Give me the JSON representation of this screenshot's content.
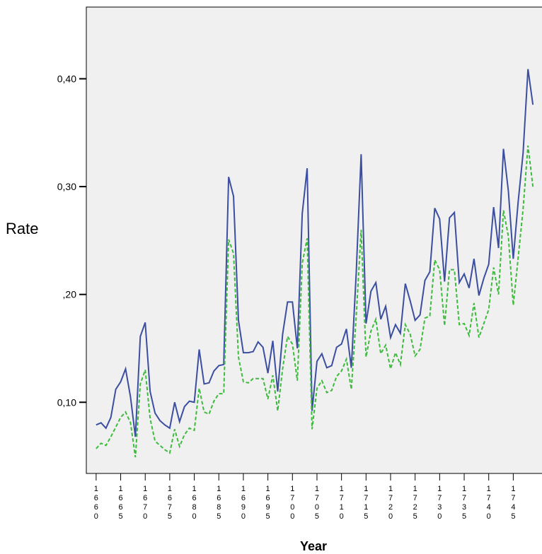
{
  "chart_data": {
    "type": "line",
    "xlabel": "Year",
    "ylabel": "Rate",
    "xlim": [
      1658,
      1751
    ],
    "ylim": [
      0.034,
      0.4665
    ],
    "y_ticks": [
      {
        "value": 0.1,
        "label": "0,10"
      },
      {
        "value": 0.2,
        "label": ",20"
      },
      {
        "value": 0.3,
        "label": "0,30"
      },
      {
        "value": 0.4,
        "label": "0,40"
      }
    ],
    "x_ticks": [
      1660,
      1665,
      1670,
      1675,
      1680,
      1685,
      1690,
      1695,
      1700,
      1705,
      1710,
      1715,
      1720,
      1725,
      1730,
      1735,
      1740,
      1745
    ],
    "x_tick_labels": [
      "1660",
      "1665",
      "1670",
      "1675",
      "1680",
      "1685",
      "1690",
      "1695",
      "1700",
      "1705",
      "1710",
      "1715",
      "1720",
      "1725",
      "1730",
      "1735",
      "1740",
      "1745"
    ],
    "plot_background": "#f0f0f0",
    "series": [
      {
        "style": "solid",
        "color": "#3b4ea0",
        "x": [
          1660,
          1661,
          1662,
          1663,
          1664,
          1665,
          1666,
          1667,
          1668,
          1669,
          1670,
          1671,
          1672,
          1673,
          1674,
          1675,
          1676,
          1677,
          1678,
          1679,
          1680,
          1681,
          1682,
          1683,
          1684,
          1685,
          1686,
          1687,
          1688,
          1689,
          1690,
          1691,
          1692,
          1693,
          1694,
          1695,
          1696,
          1697,
          1698,
          1699,
          1700,
          1701,
          1702,
          1703,
          1704,
          1705,
          1706,
          1707,
          1708,
          1709,
          1710,
          1711,
          1712,
          1713,
          1714,
          1715,
          1716,
          1717,
          1718,
          1719,
          1720,
          1721,
          1722,
          1723,
          1724,
          1725,
          1726,
          1727,
          1728,
          1729,
          1730,
          1731,
          1732,
          1733,
          1734,
          1735,
          1736,
          1737,
          1738,
          1739,
          1740,
          1741,
          1742,
          1743,
          1744,
          1745,
          1746,
          1747,
          1748,
          1749
        ],
        "values": [
          0.079,
          0.081,
          0.076,
          0.086,
          0.112,
          0.119,
          0.131,
          0.105,
          0.068,
          0.161,
          0.174,
          0.11,
          0.09,
          0.083,
          0.079,
          0.076,
          0.1,
          0.082,
          0.096,
          0.101,
          0.1,
          0.149,
          0.117,
          0.118,
          0.129,
          0.134,
          0.135,
          0.309,
          0.291,
          0.176,
          0.146,
          0.146,
          0.147,
          0.156,
          0.151,
          0.127,
          0.157,
          0.11,
          0.163,
          0.193,
          0.193,
          0.15,
          0.275,
          0.317,
          0.092,
          0.138,
          0.145,
          0.132,
          0.134,
          0.151,
          0.154,
          0.168,
          0.132,
          0.22,
          0.33,
          0.173,
          0.203,
          0.211,
          0.177,
          0.189,
          0.16,
          0.172,
          0.164,
          0.21,
          0.194,
          0.176,
          0.181,
          0.213,
          0.221,
          0.28,
          0.27,
          0.212,
          0.271,
          0.276,
          0.211,
          0.219,
          0.206,
          0.233,
          0.199,
          0.215,
          0.228,
          0.281,
          0.243,
          0.335,
          0.296,
          0.233,
          0.286,
          0.331,
          0.409,
          0.376
        ]
      },
      {
        "style": "dashed",
        "color": "#3dbb3d",
        "x": [
          1660,
          1661,
          1662,
          1663,
          1664,
          1665,
          1666,
          1667,
          1668,
          1669,
          1670,
          1671,
          1672,
          1673,
          1674,
          1675,
          1676,
          1677,
          1678,
          1679,
          1680,
          1681,
          1682,
          1683,
          1684,
          1685,
          1686,
          1687,
          1688,
          1689,
          1690,
          1691,
          1692,
          1693,
          1694,
          1695,
          1696,
          1697,
          1698,
          1699,
          1700,
          1701,
          1702,
          1703,
          1704,
          1705,
          1706,
          1707,
          1708,
          1709,
          1710,
          1711,
          1712,
          1713,
          1714,
          1715,
          1716,
          1717,
          1718,
          1719,
          1720,
          1721,
          1722,
          1723,
          1724,
          1725,
          1726,
          1727,
          1728,
          1729,
          1730,
          1731,
          1732,
          1733,
          1734,
          1735,
          1736,
          1737,
          1738,
          1739,
          1740,
          1741,
          1742,
          1743,
          1744,
          1745,
          1746,
          1747,
          1748,
          1749
        ],
        "values": [
          0.057,
          0.062,
          0.06,
          0.068,
          0.077,
          0.086,
          0.091,
          0.081,
          0.049,
          0.117,
          0.13,
          0.085,
          0.064,
          0.06,
          0.056,
          0.053,
          0.075,
          0.059,
          0.07,
          0.076,
          0.074,
          0.113,
          0.091,
          0.089,
          0.101,
          0.108,
          0.108,
          0.251,
          0.238,
          0.142,
          0.119,
          0.118,
          0.122,
          0.122,
          0.122,
          0.103,
          0.125,
          0.092,
          0.131,
          0.161,
          0.154,
          0.12,
          0.229,
          0.252,
          0.075,
          0.113,
          0.12,
          0.109,
          0.111,
          0.124,
          0.129,
          0.14,
          0.112,
          0.18,
          0.26,
          0.142,
          0.166,
          0.177,
          0.145,
          0.153,
          0.131,
          0.146,
          0.135,
          0.172,
          0.163,
          0.143,
          0.149,
          0.178,
          0.18,
          0.232,
          0.223,
          0.171,
          0.223,
          0.223,
          0.172,
          0.173,
          0.162,
          0.192,
          0.16,
          0.173,
          0.186,
          0.225,
          0.2,
          0.278,
          0.254,
          0.19,
          0.234,
          0.279,
          0.338,
          0.3
        ]
      }
    ]
  }
}
